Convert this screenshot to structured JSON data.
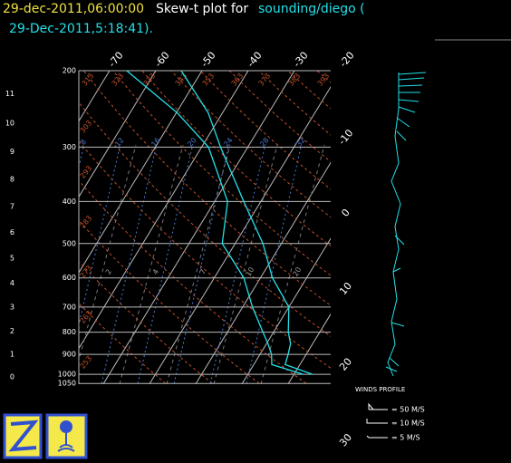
{
  "header": {
    "time": "29-dec-2011,06:00:00",
    "text": "Skew-t plot for",
    "source": "sounding/diego (",
    "source_time": "29-Dec-2011,5:18:41)."
  },
  "chart_data": {
    "type": "skewt",
    "pressure_ticks": [
      200,
      300,
      400,
      500,
      600,
      700,
      800,
      900,
      1000,
      1050
    ],
    "height_ticks": [
      0,
      1,
      2,
      3,
      4,
      5,
      6,
      7,
      8,
      9,
      10,
      11
    ],
    "temperature_ticks": [
      -70,
      -60,
      -50,
      -40,
      -30,
      -20
    ],
    "temperature_ticks_right": [
      -10,
      0,
      10,
      20,
      30
    ],
    "theta_labels": [
      313,
      323,
      333,
      343,
      353,
      363,
      373,
      383,
      393,
      303,
      293,
      283,
      273,
      263,
      253
    ],
    "moist_labels": [
      8,
      12,
      16,
      20,
      24,
      28,
      32
    ],
    "mixing_labels": [
      2,
      4,
      7,
      10,
      20
    ],
    "pressure": [
      1000,
      950,
      900,
      850,
      800,
      700,
      600,
      500,
      400,
      300,
      250,
      200
    ],
    "temperature": [
      14.0,
      6.8,
      6.1,
      5.2,
      3.2,
      0.0,
      -7.4,
      -14.0,
      -23.7,
      -35.9,
      -43.1,
      -54.5
    ],
    "dewpoint": [
      12.0,
      3.9,
      2.5,
      0.3,
      -2.3,
      -7.9,
      -13.6,
      -22.8,
      -27.2,
      -38.5,
      -49.8,
      -66.3
    ],
    "line_color": "#22e0e8"
  },
  "wind_legend": {
    "title": "WINDS PROFILE",
    "items": [
      "= 50 M/S",
      "= 10 M/S",
      "= 5 M/S"
    ]
  }
}
